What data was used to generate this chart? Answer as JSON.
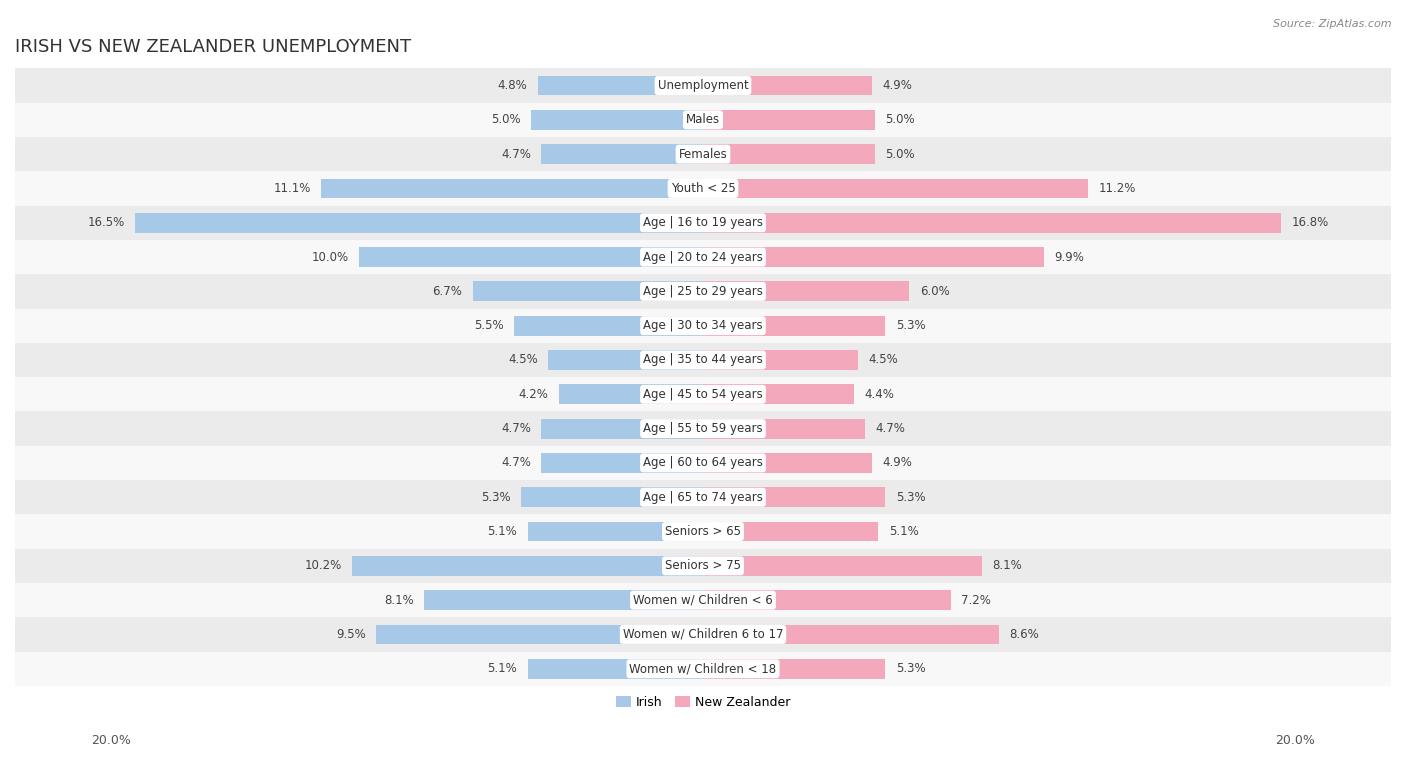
{
  "title": "IRISH VS NEW ZEALANDER UNEMPLOYMENT",
  "source": "Source: ZipAtlas.com",
  "categories": [
    "Unemployment",
    "Males",
    "Females",
    "Youth < 25",
    "Age | 16 to 19 years",
    "Age | 20 to 24 years",
    "Age | 25 to 29 years",
    "Age | 30 to 34 years",
    "Age | 35 to 44 years",
    "Age | 45 to 54 years",
    "Age | 55 to 59 years",
    "Age | 60 to 64 years",
    "Age | 65 to 74 years",
    "Seniors > 65",
    "Seniors > 75",
    "Women w/ Children < 6",
    "Women w/ Children 6 to 17",
    "Women w/ Children < 18"
  ],
  "irish_values": [
    4.8,
    5.0,
    4.7,
    11.1,
    16.5,
    10.0,
    6.7,
    5.5,
    4.5,
    4.2,
    4.7,
    4.7,
    5.3,
    5.1,
    10.2,
    8.1,
    9.5,
    5.1
  ],
  "nz_values": [
    4.9,
    5.0,
    5.0,
    11.2,
    16.8,
    9.9,
    6.0,
    5.3,
    4.5,
    4.4,
    4.7,
    4.9,
    5.3,
    5.1,
    8.1,
    7.2,
    8.6,
    5.3
  ],
  "irish_color": "#a8c8e8",
  "nz_color": "#f4a8bc",
  "axis_max": 20.0,
  "legend_labels": [
    "Irish",
    "New Zealander"
  ],
  "bg_color_odd": "#ebebeb",
  "bg_color_even": "#f8f8f8",
  "bar_height": 0.58,
  "title_fontsize": 13,
  "label_fontsize": 8.5,
  "value_fontsize": 8.5,
  "bottom_label": "20.0%"
}
